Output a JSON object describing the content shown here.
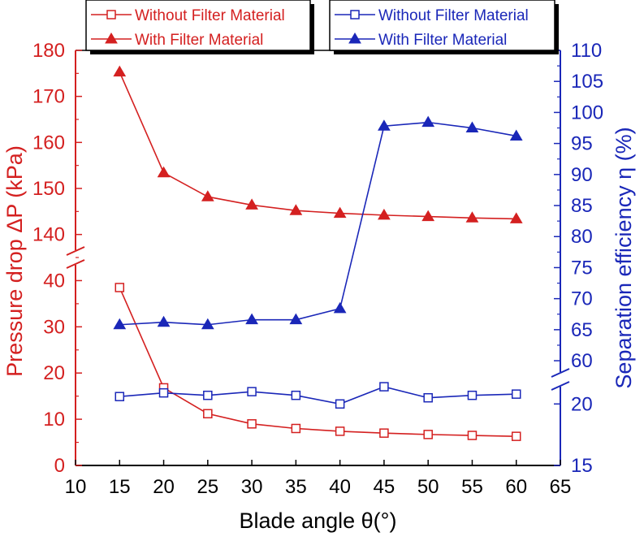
{
  "chart_data": {
    "type": "line",
    "xlabel": "Blade angle θ(°)",
    "ylabel_left": "Pressure drop ΔP (kPa)",
    "ylabel_right": "Separation efficiency η (%)",
    "x": [
      15,
      20,
      25,
      30,
      35,
      40,
      45,
      50,
      55,
      60
    ],
    "x_ticks": [
      10,
      15,
      20,
      25,
      30,
      35,
      40,
      45,
      50,
      55,
      60,
      65
    ],
    "xlim": [
      10,
      65
    ],
    "left_axis": {
      "color": "#d42020",
      "lower_segment": {
        "ylim": [
          0,
          45
        ],
        "ticks": [
          0,
          10,
          20,
          30,
          40
        ]
      },
      "upper_segment": {
        "ylim": [
          135,
          180
        ],
        "ticks": [
          140,
          150,
          160,
          170,
          180
        ]
      },
      "break": "between 45 and 135"
    },
    "right_axis": {
      "color": "#1a27b8",
      "lower_segment": {
        "ylim": [
          15,
          22
        ],
        "ticks": [
          15,
          20
        ]
      },
      "upper_segment": {
        "ylim": [
          57,
          110
        ],
        "ticks": [
          60,
          65,
          70,
          75,
          80,
          85,
          90,
          95,
          100,
          105,
          110
        ]
      },
      "break": "between 22 and 57"
    },
    "series": [
      {
        "name": "Without Filter Material",
        "axis": "left",
        "marker": "open-square",
        "color": "#d42020",
        "values": [
          38.5,
          16.8,
          11.2,
          9.0,
          8.0,
          7.4,
          7.0,
          6.7,
          6.5,
          6.3
        ]
      },
      {
        "name": "With Filter Material",
        "axis": "left",
        "marker": "filled-triangle",
        "color": "#d42020",
        "values": [
          175.3,
          153.4,
          148.2,
          146.4,
          145.2,
          144.6,
          144.2,
          143.9,
          143.6,
          143.4
        ]
      },
      {
        "name": "Without Filter Material",
        "axis": "right",
        "marker": "open-square",
        "color": "#1a27b8",
        "values": [
          20.6,
          20.9,
          20.7,
          21.0,
          20.7,
          20.0,
          21.4,
          20.5,
          20.7,
          20.8
        ]
      },
      {
        "name": "With Filter Material",
        "axis": "right",
        "marker": "filled-triangle",
        "color": "#1a27b8",
        "values": [
          65.8,
          66.2,
          65.8,
          66.6,
          66.6,
          68.4,
          97.8,
          98.4,
          97.5,
          96.2
        ]
      }
    ],
    "legends": [
      {
        "position": "top-left",
        "color": "#d42020",
        "entries": [
          {
            "label": "Without Filter Material",
            "marker": "open-square"
          },
          {
            "label": "With Filter Material",
            "marker": "filled-triangle"
          }
        ]
      },
      {
        "position": "top-right",
        "color": "#1a27b8",
        "entries": [
          {
            "label": "Without Filter Material",
            "marker": "open-square"
          },
          {
            "label": "With Filter Material",
            "marker": "filled-triangle"
          }
        ]
      }
    ]
  }
}
